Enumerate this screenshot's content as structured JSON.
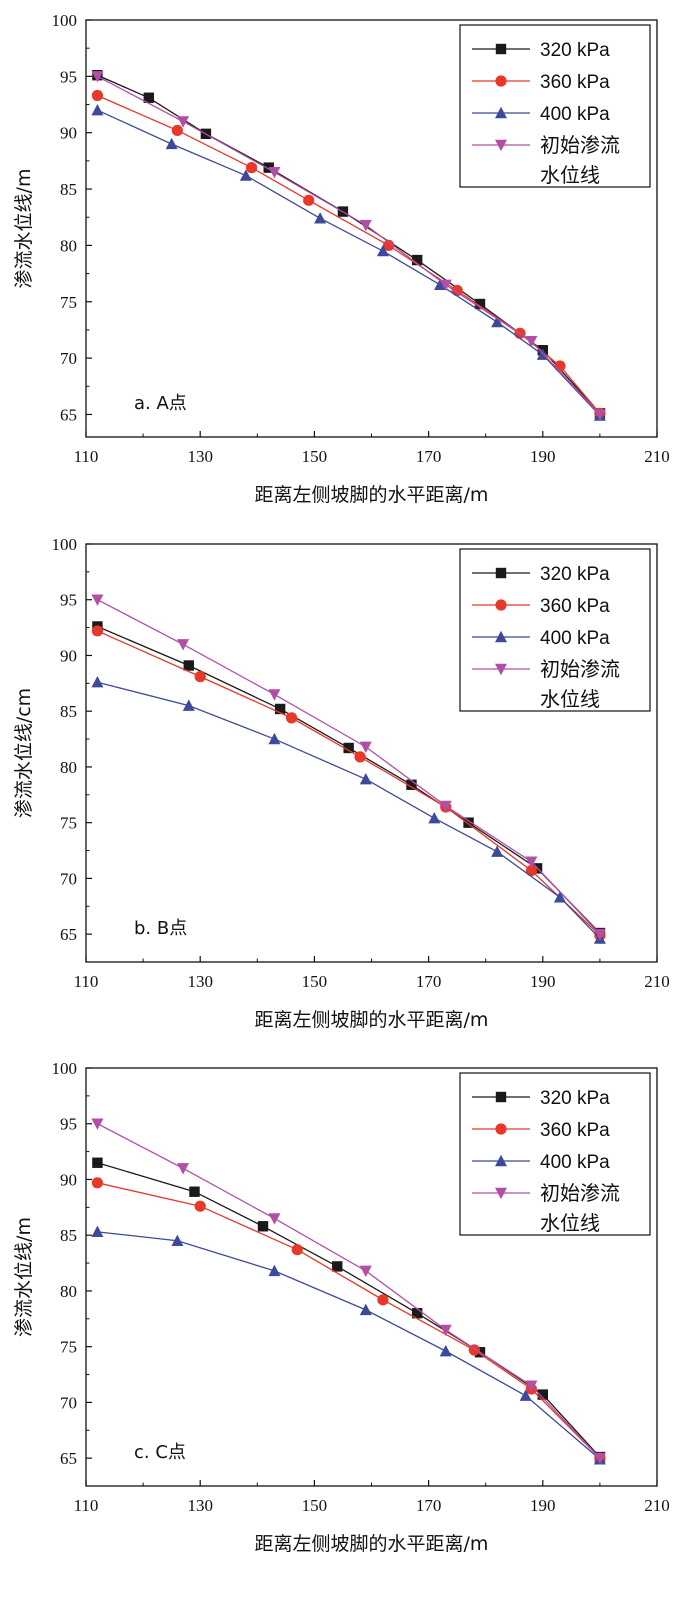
{
  "chart_data": [
    {
      "type": "line",
      "panel_label": "a. A点",
      "xlabel": "距离左侧坡脚的水平距离/m",
      "ylabel": "渗流水位线/m",
      "xlim": [
        110,
        210
      ],
      "ylim": [
        63,
        100
      ],
      "xticks": [
        110,
        130,
        150,
        170,
        190,
        210
      ],
      "yticks": [
        65,
        70,
        75,
        80,
        85,
        90,
        95,
        100
      ],
      "legend_position": "top-right",
      "series": [
        {
          "name": "320 kPa",
          "color": "#1a1a1a",
          "marker": "square",
          "x": [
            112,
            121,
            131,
            142,
            155,
            168,
            179,
            190,
            200
          ],
          "y": [
            95.1,
            93.1,
            89.9,
            86.9,
            83.0,
            78.7,
            74.8,
            70.7,
            65.1
          ]
        },
        {
          "name": "360 kPa",
          "color": "#e8382a",
          "marker": "circle",
          "x": [
            112,
            126,
            139,
            149,
            163,
            175,
            186,
            193,
            200
          ],
          "y": [
            93.3,
            90.2,
            86.9,
            84.0,
            80.0,
            76.0,
            72.2,
            69.3,
            65.1
          ]
        },
        {
          "name": "400 kPa",
          "color": "#3d4a99",
          "marker": "triangle-up",
          "x": [
            112,
            125,
            138,
            151,
            162,
            172,
            182,
            190,
            200
          ],
          "y": [
            92.0,
            89.0,
            86.2,
            82.4,
            79.5,
            76.5,
            73.2,
            70.3,
            64.9
          ]
        },
        {
          "name": "初始渗流水位线",
          "color": "#b04fa5",
          "marker": "triangle-down",
          "x": [
            112,
            127,
            143,
            159,
            173,
            188,
            200
          ],
          "y": [
            95.0,
            91.0,
            86.5,
            81.8,
            76.5,
            71.5,
            65.0
          ]
        }
      ]
    },
    {
      "type": "line",
      "panel_label": "b. B点",
      "xlabel": "距离左侧坡脚的水平距离/m",
      "ylabel": "渗流水位线/cm",
      "xlim": [
        110,
        210
      ],
      "ylim": [
        62.5,
        100
      ],
      "xticks": [
        110,
        130,
        150,
        170,
        190,
        210
      ],
      "yticks": [
        65,
        70,
        75,
        80,
        85,
        90,
        95,
        100
      ],
      "legend_position": "top-right",
      "series": [
        {
          "name": "320 kPa",
          "color": "#1a1a1a",
          "marker": "square",
          "x": [
            112,
            128,
            144,
            156,
            167,
            177,
            189,
            200
          ],
          "y": [
            92.6,
            89.1,
            85.2,
            81.7,
            78.4,
            75.0,
            70.9,
            65.1
          ]
        },
        {
          "name": "360 kPa",
          "color": "#e8382a",
          "marker": "circle",
          "x": [
            112,
            130,
            146,
            158,
            173,
            188,
            200
          ],
          "y": [
            92.2,
            88.1,
            84.4,
            80.9,
            76.4,
            70.7,
            64.9
          ]
        },
        {
          "name": "400 kPa",
          "color": "#3d4a99",
          "marker": "triangle-up",
          "x": [
            112,
            128,
            143,
            159,
            171,
            182,
            193,
            200
          ],
          "y": [
            87.6,
            85.5,
            82.5,
            78.9,
            75.4,
            72.4,
            68.3,
            64.6
          ]
        },
        {
          "name": "初始渗流水位线",
          "color": "#b04fa5",
          "marker": "triangle-down",
          "x": [
            112,
            127,
            143,
            159,
            173,
            188,
            200
          ],
          "y": [
            95.0,
            91.0,
            86.5,
            81.8,
            76.5,
            71.5,
            65.0
          ]
        }
      ]
    },
    {
      "type": "line",
      "panel_label": "c. C点",
      "xlabel": "距离左侧坡脚的水平距离/m",
      "ylabel": "渗流水位线/m",
      "xlim": [
        110,
        210
      ],
      "ylim": [
        62.5,
        100
      ],
      "xticks": [
        110,
        130,
        150,
        170,
        190,
        210
      ],
      "yticks": [
        65,
        70,
        75,
        80,
        85,
        90,
        95,
        100
      ],
      "legend_position": "top-right",
      "series": [
        {
          "name": "320 kPa",
          "color": "#1a1a1a",
          "marker": "square",
          "x": [
            112,
            129,
            141,
            154,
            168,
            179,
            190,
            200
          ],
          "y": [
            91.5,
            88.9,
            85.8,
            82.2,
            78.0,
            74.5,
            70.7,
            65.1
          ]
        },
        {
          "name": "360 kPa",
          "color": "#e8382a",
          "marker": "circle",
          "x": [
            112,
            130,
            147,
            162,
            178,
            188,
            200
          ],
          "y": [
            89.7,
            87.6,
            83.7,
            79.2,
            74.7,
            71.2,
            65.0
          ]
        },
        {
          "name": "400 kPa",
          "color": "#3d4a99",
          "marker": "triangle-up",
          "x": [
            112,
            126,
            143,
            159,
            173,
            187,
            200
          ],
          "y": [
            85.3,
            84.5,
            81.8,
            78.3,
            74.6,
            70.6,
            64.9
          ]
        },
        {
          "name": "初始渗流水位线",
          "color": "#b04fa5",
          "marker": "triangle-down",
          "x": [
            112,
            127,
            143,
            159,
            173,
            188,
            200
          ],
          "y": [
            95.0,
            91.0,
            86.5,
            81.8,
            76.5,
            71.5,
            65.0
          ]
        }
      ]
    }
  ]
}
